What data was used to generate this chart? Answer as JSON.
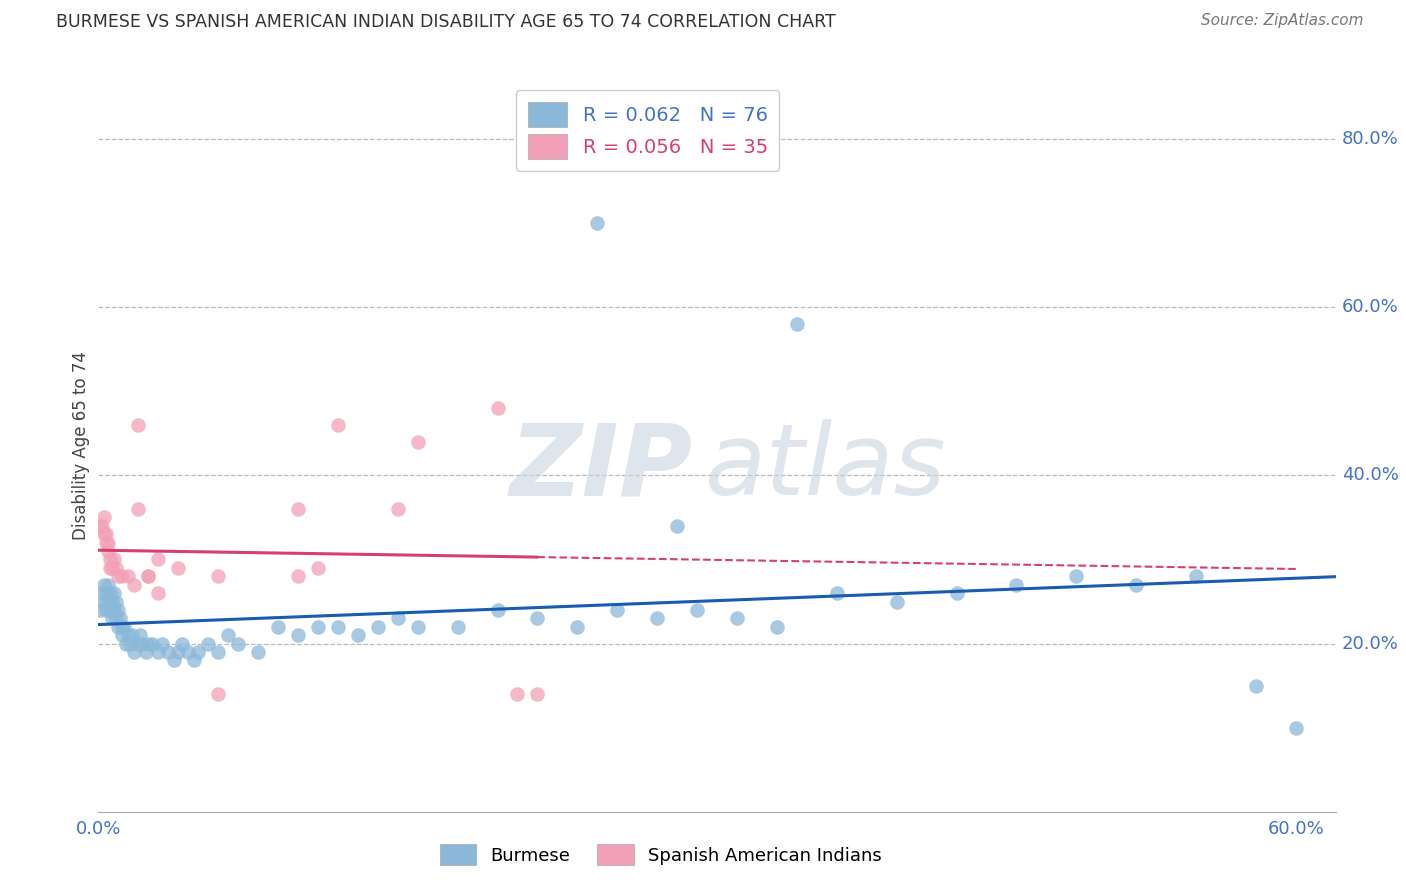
{
  "title": "BURMESE VS SPANISH AMERICAN INDIAN DISABILITY AGE 65 TO 74 CORRELATION CHART",
  "source": "Source: ZipAtlas.com",
  "ylabel": "Disability Age 65 to 74",
  "legend_label_blue": "Burmese",
  "legend_label_pink": "Spanish American Indians",
  "R_blue": 0.062,
  "N_blue": 76,
  "R_pink": 0.056,
  "N_pink": 35,
  "xlim": [
    0.0,
    0.62
  ],
  "ylim": [
    0.0,
    0.87
  ],
  "x_ticks": [
    0.0,
    0.1,
    0.2,
    0.3,
    0.4,
    0.5,
    0.6
  ],
  "x_tick_labels": [
    "0.0%",
    "",
    "",
    "",
    "",
    "",
    "60.0%"
  ],
  "y_ticks_right": [
    0.2,
    0.4,
    0.6,
    0.8
  ],
  "y_tick_labels_right": [
    "20.0%",
    "40.0%",
    "60.0%",
    "80.0%"
  ],
  "color_blue": "#8BB8D8",
  "color_pink": "#F2A0B8",
  "line_color_blue": "#1A5CB0",
  "line_color_pink": "#D44070",
  "watermark_zip": "ZIP",
  "watermark_atlas": "atlas",
  "background_color": "#ffffff",
  "grid_color": "#BBBBBB",
  "blue_x": [
    0.001,
    0.002,
    0.003,
    0.003,
    0.004,
    0.004,
    0.005,
    0.005,
    0.006,
    0.006,
    0.007,
    0.007,
    0.008,
    0.008,
    0.009,
    0.009,
    0.01,
    0.01,
    0.011,
    0.012,
    0.012,
    0.013,
    0.014,
    0.015,
    0.016,
    0.017,
    0.018,
    0.02,
    0.021,
    0.022,
    0.024,
    0.025,
    0.027,
    0.03,
    0.032,
    0.035,
    0.038,
    0.04,
    0.042,
    0.045,
    0.048,
    0.05,
    0.055,
    0.06,
    0.065,
    0.07,
    0.08,
    0.09,
    0.1,
    0.11,
    0.12,
    0.13,
    0.14,
    0.15,
    0.16,
    0.18,
    0.2,
    0.22,
    0.24,
    0.26,
    0.28,
    0.3,
    0.32,
    0.34,
    0.37,
    0.29,
    0.4,
    0.43,
    0.46,
    0.49,
    0.52,
    0.55,
    0.58,
    0.6,
    0.25,
    0.35
  ],
  "blue_y": [
    0.24,
    0.26,
    0.27,
    0.25,
    0.26,
    0.24,
    0.27,
    0.25,
    0.26,
    0.24,
    0.25,
    0.23,
    0.26,
    0.24,
    0.25,
    0.23,
    0.24,
    0.22,
    0.23,
    0.22,
    0.21,
    0.22,
    0.2,
    0.21,
    0.2,
    0.21,
    0.19,
    0.2,
    0.21,
    0.2,
    0.19,
    0.2,
    0.2,
    0.19,
    0.2,
    0.19,
    0.18,
    0.19,
    0.2,
    0.19,
    0.18,
    0.19,
    0.2,
    0.19,
    0.21,
    0.2,
    0.19,
    0.22,
    0.21,
    0.22,
    0.22,
    0.21,
    0.22,
    0.23,
    0.22,
    0.22,
    0.24,
    0.23,
    0.22,
    0.24,
    0.23,
    0.24,
    0.23,
    0.22,
    0.26,
    0.34,
    0.25,
    0.26,
    0.27,
    0.28,
    0.27,
    0.28,
    0.15,
    0.1,
    0.7,
    0.58
  ],
  "pink_x": [
    0.001,
    0.002,
    0.003,
    0.003,
    0.004,
    0.004,
    0.005,
    0.005,
    0.006,
    0.006,
    0.007,
    0.008,
    0.009,
    0.01,
    0.012,
    0.015,
    0.018,
    0.02,
    0.025,
    0.03,
    0.04,
    0.06,
    0.1,
    0.11,
    0.12,
    0.15,
    0.16,
    0.2,
    0.21,
    0.22,
    0.02,
    0.025,
    0.03,
    0.06,
    0.1
  ],
  "pink_y": [
    0.34,
    0.34,
    0.35,
    0.33,
    0.33,
    0.32,
    0.32,
    0.31,
    0.3,
    0.29,
    0.29,
    0.3,
    0.29,
    0.28,
    0.28,
    0.28,
    0.27,
    0.46,
    0.28,
    0.3,
    0.29,
    0.28,
    0.28,
    0.29,
    0.46,
    0.36,
    0.44,
    0.48,
    0.14,
    0.14,
    0.36,
    0.28,
    0.26,
    0.14,
    0.36
  ]
}
